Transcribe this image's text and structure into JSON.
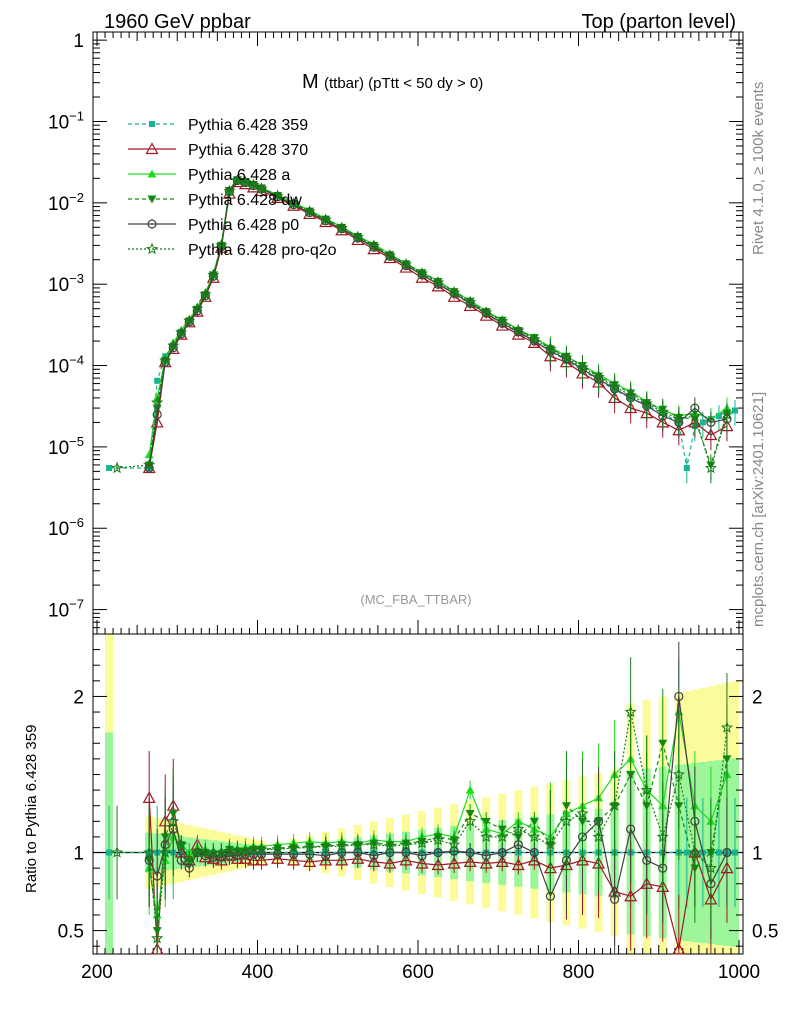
{
  "header": {
    "left": "1960 GeV ppbar",
    "right": "Top (parton level)"
  },
  "side_labels": {
    "rivet": "Rivet 4.1.0, ≥ 100k events",
    "mcplots": "mcplots.cern.ch [arXiv:2401.10621]"
  },
  "chart_data": {
    "type": "line",
    "title_main": "M",
    "title_sub": "(ttbar) (pTtt < 50 dy > 0)",
    "analysis_tag": "(MC_FBA_TTBAR)",
    "xlabel": "",
    "ylabel_main": "",
    "ylabel_ratio": "Ratio to Pythia 6.428 359",
    "xlim": [
      195,
      1005
    ],
    "ylim_main_log10": [
      -7.3,
      0.1
    ],
    "ylim_ratio": [
      0.35,
      2.4
    ],
    "x_ticks": [
      "200",
      "400",
      "600",
      "800",
      "1000"
    ],
    "x_tick_values": [
      200,
      400,
      600,
      800,
      1000
    ],
    "y_ticks_main": [
      {
        "base": "1",
        "exp": "",
        "log": 0
      },
      {
        "base": "10",
        "exp": "−1",
        "log": -1
      },
      {
        "base": "10",
        "exp": "−2",
        "log": -2
      },
      {
        "base": "10",
        "exp": "−3",
        "log": -3
      },
      {
        "base": "10",
        "exp": "−4",
        "log": -4
      },
      {
        "base": "10",
        "exp": "−5",
        "log": -5
      },
      {
        "base": "10",
        "exp": "−6",
        "log": -6
      },
      {
        "base": "10",
        "exp": "−7",
        "log": -7
      }
    ],
    "y_ticks_ratio": [
      {
        "label": "2",
        "value": 2
      },
      {
        "label": "1",
        "value": 1
      },
      {
        "label": "0.5",
        "value": 0.5
      }
    ],
    "legend_position": "top-left",
    "series": [
      {
        "name": "Pythia 6.428 359",
        "color": "#17b494",
        "dash": "4,3",
        "marker": "square",
        "x": [
          215,
          265,
          275,
          285,
          295,
          305,
          315,
          325,
          335,
          345,
          355,
          365,
          375,
          385,
          395,
          405,
          425,
          445,
          465,
          485,
          505,
          525,
          545,
          565,
          585,
          605,
          625,
          645,
          665,
          685,
          705,
          725,
          745,
          765,
          785,
          805,
          825,
          845,
          865,
          885,
          905,
          925,
          935,
          945,
          955,
          965,
          975,
          985,
          995
        ],
        "y": [
          5.5e-06,
          5.5e-06,
          6.5e-05,
          0.00013,
          0.00018,
          0.00026,
          0.00036,
          0.0005,
          0.00075,
          0.0013,
          0.003,
          0.014,
          0.019,
          0.018,
          0.0165,
          0.015,
          0.012,
          0.0096,
          0.0077,
          0.0061,
          0.0048,
          0.0037,
          0.0029,
          0.0022,
          0.0017,
          0.0013,
          0.001,
          0.00076,
          0.00057,
          0.00043,
          0.00033,
          0.00025,
          0.0002,
          0.00015,
          0.000115,
          8.7e-05,
          6.6e-05,
          5e-05,
          4e-05,
          3.2e-05,
          2.6e-05,
          2e-05,
          5.5e-06,
          1.8e-05,
          2e-05,
          2.2e-05,
          2.4e-05,
          2.6e-05,
          2.8e-05
        ],
        "ratio": [
          1,
          1,
          1,
          1,
          1,
          1,
          1,
          1,
          1,
          1,
          1,
          1,
          1,
          1,
          1,
          1,
          1,
          1,
          1,
          1,
          1,
          1,
          1,
          1,
          1,
          1,
          1,
          1,
          1,
          1,
          1,
          1,
          1,
          1,
          1,
          1,
          1,
          1,
          1,
          1,
          1,
          1,
          1,
          1,
          1,
          1,
          1,
          1,
          1
        ]
      },
      {
        "name": "Pythia 6.428 370",
        "color": "#a01824",
        "dash": "",
        "marker": "triangle-open",
        "x": [
          265,
          275,
          285,
          295,
          305,
          315,
          325,
          335,
          345,
          355,
          365,
          375,
          385,
          395,
          405,
          425,
          445,
          465,
          485,
          505,
          525,
          545,
          565,
          585,
          605,
          625,
          645,
          665,
          685,
          705,
          725,
          745,
          765,
          785,
          805,
          825,
          845,
          865,
          885,
          905,
          925,
          945,
          965,
          985
        ],
        "y": [
          5.5e-06,
          2e-05,
          0.00011,
          0.00016,
          0.00024,
          0.00034,
          0.00046,
          0.0007,
          0.0012,
          0.0028,
          0.013,
          0.018,
          0.017,
          0.0155,
          0.014,
          0.0115,
          0.0092,
          0.0073,
          0.0058,
          0.0046,
          0.0035,
          0.0027,
          0.0021,
          0.0016,
          0.0012,
          0.00094,
          0.0007,
          0.00054,
          0.00041,
          0.00031,
          0.00024,
          0.00019,
          0.00013,
          0.00011,
          8e-05,
          6.2e-05,
          4e-05,
          3e-05,
          2.6e-05,
          2e-05,
          1.6e-05,
          2e-05,
          1.4e-05,
          1.8e-05
        ],
        "ratio": [
          1.35,
          0.38,
          1.2,
          1.3,
          1.0,
          0.95,
          1.05,
          0.97,
          0.96,
          0.95,
          0.98,
          0.96,
          0.96,
          0.95,
          0.95,
          0.96,
          0.95,
          0.94,
          0.95,
          0.95,
          0.96,
          0.94,
          0.93,
          0.95,
          0.93,
          0.92,
          0.93,
          0.94,
          0.93,
          0.94,
          0.92,
          0.95,
          0.9,
          0.92,
          0.95,
          0.93,
          0.75,
          0.72,
          0.8,
          0.78,
          0.38,
          1.0,
          0.7,
          0.9
        ]
      },
      {
        "name": "Pythia 6.428 a",
        "color": "#20dc20",
        "dash": "",
        "marker": "triangle",
        "x": [
          265,
          275,
          285,
          295,
          305,
          315,
          325,
          335,
          345,
          355,
          365,
          375,
          385,
          395,
          405,
          425,
          445,
          465,
          485,
          505,
          525,
          545,
          565,
          585,
          605,
          625,
          645,
          665,
          685,
          705,
          725,
          745,
          765,
          785,
          805,
          825,
          845,
          865,
          885,
          905,
          925,
          945,
          965,
          985
        ],
        "y": [
          8e-06,
          4e-05,
          0.00012,
          0.00019,
          0.00027,
          0.00037,
          0.00052,
          0.00078,
          0.00135,
          0.0031,
          0.0145,
          0.0195,
          0.0185,
          0.017,
          0.0155,
          0.0125,
          0.01,
          0.0081,
          0.0064,
          0.0051,
          0.0039,
          0.0031,
          0.00235,
          0.0018,
          0.0014,
          0.0011,
          0.00082,
          0.00063,
          0.00047,
          0.00036,
          0.00028,
          0.00022,
          0.00017,
          0.00013,
          0.0001,
          7.8e-05,
          6e-05,
          4.8e-05,
          3.6e-05,
          2.8e-05,
          2.4e-05,
          2.6e-05,
          2.2e-05,
          3e-05
        ],
        "ratio": [
          0.9,
          0.6,
          0.95,
          1.1,
          1.05,
          1.0,
          1.03,
          1.02,
          1.0,
          1.0,
          1.03,
          1.02,
          1.03,
          1.04,
          1.04,
          1.05,
          1.06,
          1.07,
          1.06,
          1.07,
          1.06,
          1.08,
          1.07,
          1.07,
          1.1,
          1.12,
          1.1,
          1.4,
          1.15,
          1.12,
          1.2,
          1.15,
          1.1,
          1.25,
          1.3,
          1.35,
          1.5,
          1.6,
          1.4,
          1.3,
          1.9,
          1.3,
          1.2,
          1.5
        ]
      },
      {
        "name": "Pythia 6.428 dw",
        "color": "#108c10",
        "dash": "4,3",
        "marker": "triangle-down",
        "x": [
          265,
          275,
          285,
          295,
          305,
          315,
          325,
          335,
          345,
          355,
          365,
          375,
          385,
          395,
          405,
          425,
          445,
          465,
          485,
          505,
          525,
          545,
          565,
          585,
          605,
          625,
          645,
          665,
          685,
          705,
          725,
          745,
          765,
          785,
          805,
          825,
          845,
          865,
          885,
          905,
          925,
          945,
          965,
          985
        ],
        "y": [
          6e-06,
          3e-05,
          0.000115,
          0.00017,
          0.00025,
          0.00035,
          0.00049,
          0.00074,
          0.0013,
          0.003,
          0.0142,
          0.0192,
          0.0182,
          0.0168,
          0.0152,
          0.0123,
          0.0099,
          0.0079,
          0.0063,
          0.005,
          0.00385,
          0.003,
          0.0023,
          0.00178,
          0.00138,
          0.00108,
          0.00081,
          0.00062,
          0.00046,
          0.00036,
          0.00027,
          0.00022,
          0.00016,
          0.00013,
          0.0001,
          7.4e-05,
          5.8e-05,
          4.6e-05,
          3.5e-05,
          2.9e-05,
          2.3e-05,
          2.2e-05,
          6e-06,
          2.6e-05
        ],
        "ratio": [
          0.95,
          0.5,
          1.1,
          1.25,
          1.05,
          0.95,
          1.0,
          1.0,
          0.99,
          0.99,
          1.02,
          1.01,
          1.01,
          1.02,
          1.02,
          1.03,
          1.03,
          1.04,
          1.04,
          1.05,
          1.05,
          1.06,
          1.05,
          1.06,
          1.07,
          1.1,
          1.08,
          1.25,
          1.2,
          1.15,
          1.1,
          1.2,
          1.05,
          1.3,
          1.2,
          1.2,
          1.3,
          1.5,
          1.3,
          1.7,
          1.3,
          0.9,
          1.0,
          1.6
        ]
      },
      {
        "name": "Pythia 6.428 p0",
        "color": "#404040",
        "dash": "",
        "marker": "circle-open",
        "x": [
          265,
          275,
          285,
          295,
          305,
          315,
          325,
          335,
          345,
          355,
          365,
          375,
          385,
          395,
          405,
          425,
          445,
          465,
          485,
          505,
          525,
          545,
          565,
          585,
          605,
          625,
          645,
          665,
          685,
          705,
          725,
          745,
          765,
          785,
          805,
          825,
          845,
          865,
          885,
          905,
          925,
          945,
          965,
          985
        ],
        "y": [
          5.5e-06,
          2.5e-05,
          0.00011,
          0.000165,
          0.000245,
          0.000345,
          0.00047,
          0.00072,
          0.00125,
          0.0029,
          0.0138,
          0.0188,
          0.0178,
          0.0163,
          0.0148,
          0.0119,
          0.0095,
          0.0076,
          0.006,
          0.0048,
          0.0037,
          0.00285,
          0.0022,
          0.0017,
          0.0013,
          0.001,
          0.00077,
          0.00058,
          0.00044,
          0.00033,
          0.00026,
          0.0002,
          0.00015,
          0.00012,
          9e-05,
          6.8e-05,
          5.2e-05,
          4e-05,
          3.2e-05,
          2.4e-05,
          2e-05,
          3e-05,
          2e-05,
          2.2e-05
        ],
        "ratio": [
          0.95,
          0.85,
          1.05,
          1.15,
          0.95,
          0.9,
          1.0,
          0.98,
          0.97,
          0.97,
          0.98,
          0.98,
          0.99,
          0.99,
          0.99,
          0.99,
          0.99,
          0.99,
          0.98,
          1.0,
          1.0,
          0.98,
          1.0,
          1.0,
          0.98,
          1.0,
          1.01,
          1.0,
          0.98,
          1.0,
          1.05,
          1.0,
          0.72,
          0.95,
          1.1,
          1.2,
          0.7,
          1.15,
          0.95,
          0.9,
          2.0,
          1.2,
          0.8,
          1.0
        ]
      },
      {
        "name": "Pythia 6.428 pro-q2o",
        "color": "#1a7a1a",
        "dash": "2,2",
        "marker": "star",
        "x": [
          225,
          265,
          275,
          285,
          295,
          305,
          315,
          325,
          335,
          345,
          355,
          365,
          375,
          385,
          395,
          405,
          425,
          445,
          465,
          485,
          505,
          525,
          545,
          565,
          585,
          605,
          625,
          645,
          665,
          685,
          705,
          725,
          745,
          765,
          785,
          805,
          825,
          845,
          865,
          885,
          905,
          925,
          945,
          965,
          985
        ],
        "y": [
          5.5e-06,
          6e-06,
          3.5e-05,
          0.000115,
          0.000175,
          0.000255,
          0.000355,
          0.0005,
          0.00075,
          0.0013,
          0.003,
          0.014,
          0.019,
          0.018,
          0.0166,
          0.015,
          0.0122,
          0.0098,
          0.0078,
          0.0062,
          0.0049,
          0.0038,
          0.00295,
          0.00225,
          0.00175,
          0.00135,
          0.00105,
          0.00079,
          0.0006,
          0.00045,
          0.00035,
          0.00027,
          0.00021,
          0.00016,
          0.000125,
          9.5e-05,
          7.2e-05,
          5.5e-05,
          4.3e-05,
          3.4e-05,
          2.7e-05,
          2.2e-05,
          2.4e-05,
          5.5e-06,
          2.5e-05
        ],
        "ratio": [
          1.0,
          1.0,
          0.45,
          1.0,
          1.2,
          1.05,
          0.95,
          1.0,
          1.0,
          1.0,
          1.0,
          1.01,
          1.01,
          1.01,
          1.02,
          1.02,
          1.02,
          1.03,
          1.03,
          1.04,
          1.04,
          1.05,
          1.05,
          1.04,
          1.05,
          1.06,
          1.08,
          1.05,
          1.2,
          1.1,
          1.1,
          1.15,
          1.1,
          1.05,
          1.2,
          1.25,
          1.1,
          1.3,
          1.9,
          1.4,
          1.1,
          1.5,
          1.0,
          0.9,
          1.8
        ]
      }
    ]
  }
}
